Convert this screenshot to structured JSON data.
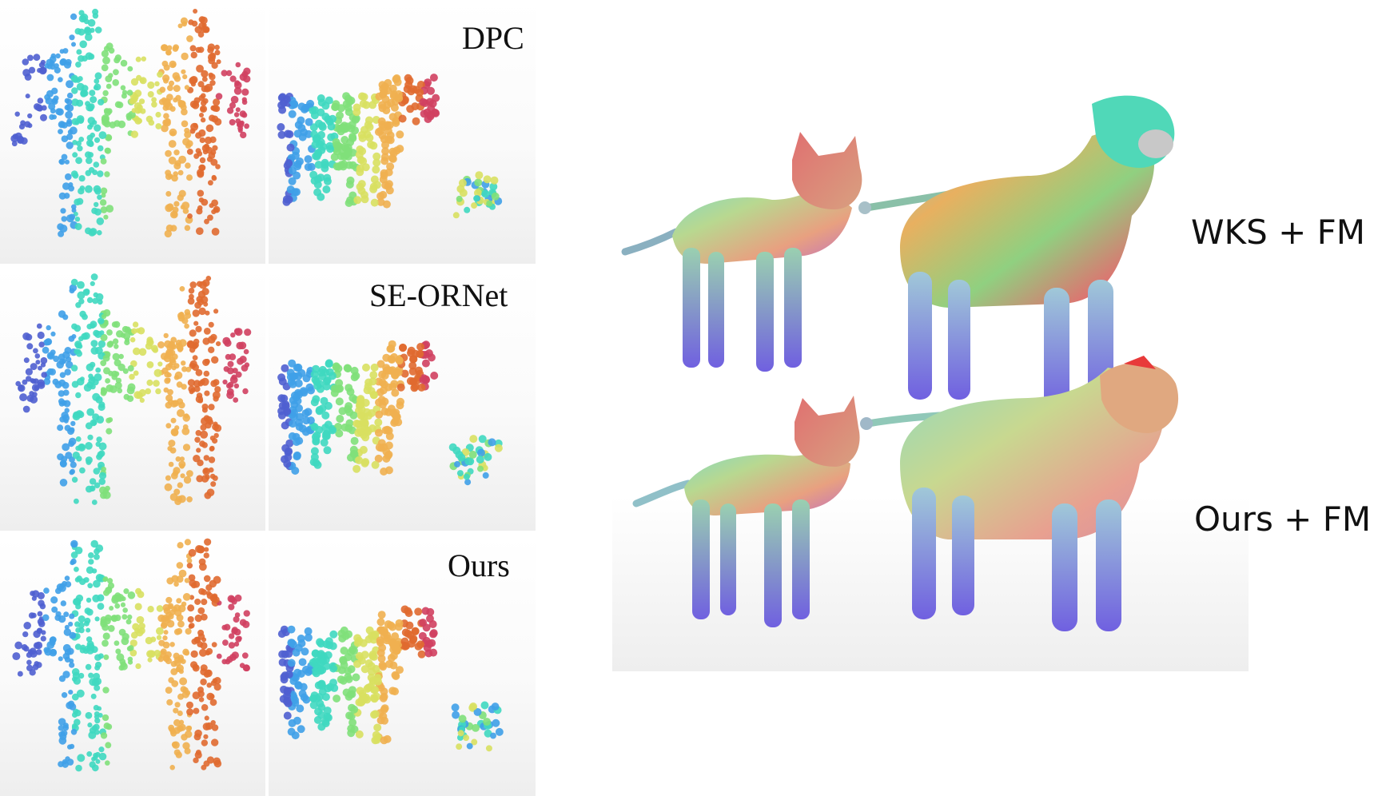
{
  "left_figure": {
    "rows": [
      {
        "label": "DPC"
      },
      {
        "label": "SE-ORNet"
      },
      {
        "label": "Ours"
      }
    ]
  },
  "right_figure": {
    "rows": [
      {
        "label": "WKS + FM"
      },
      {
        "label": "Ours + FM"
      }
    ]
  },
  "colors": {
    "palette": [
      "#4f5fd0",
      "#3fa0e8",
      "#3fd8c0",
      "#7fe07a",
      "#d8e060",
      "#f0b050",
      "#e06a30",
      "#d04060",
      "#8060d0"
    ]
  }
}
